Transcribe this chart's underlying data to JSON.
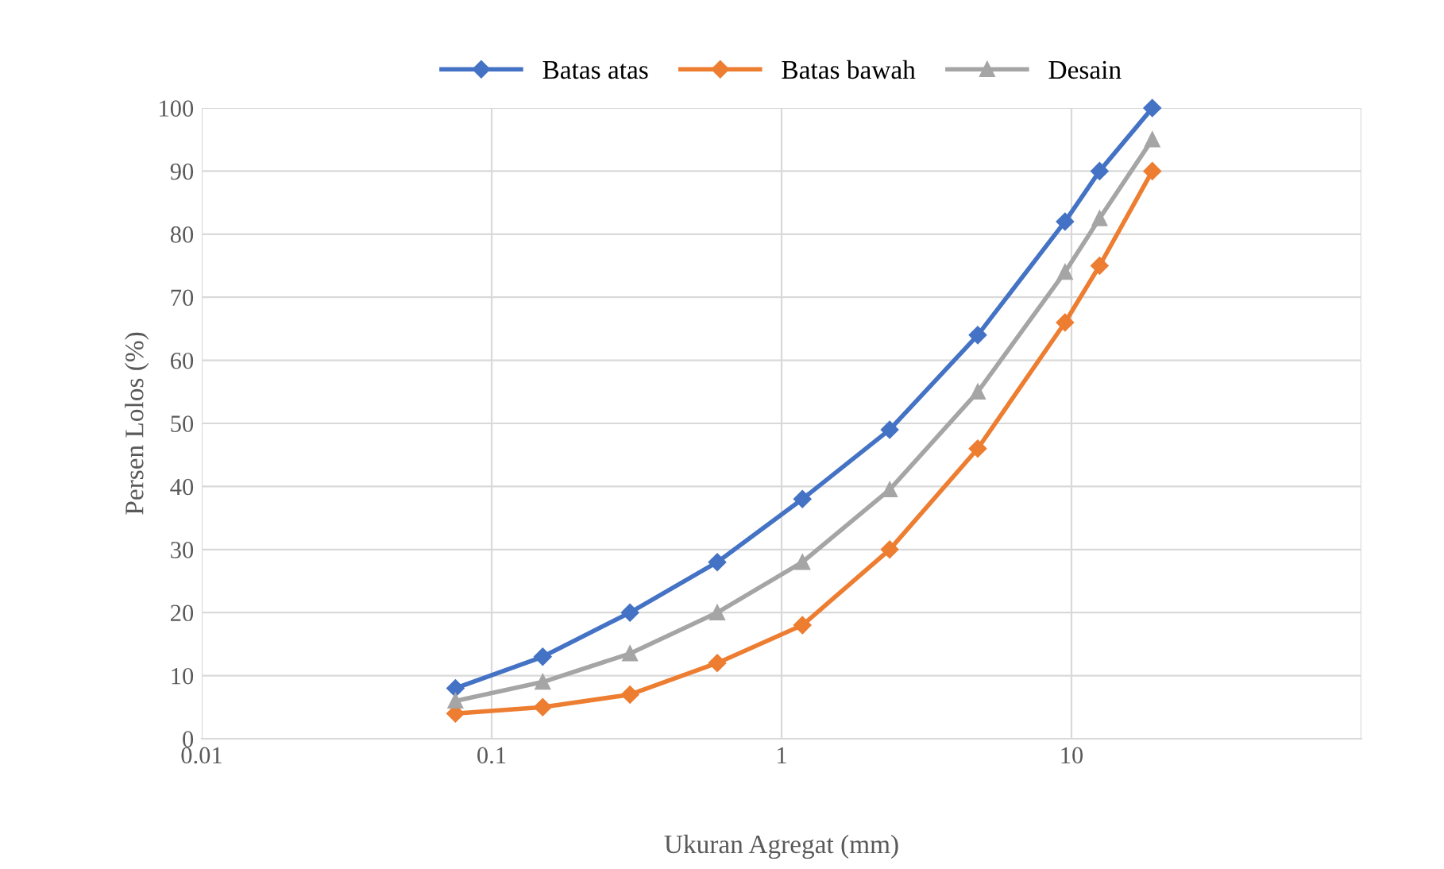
{
  "chart_data": {
    "type": "line",
    "xlabel": "Ukuran Agregat (mm)",
    "ylabel": "Persen Lolos (%)",
    "x": [
      0.075,
      0.15,
      0.3,
      0.6,
      1.18,
      2.36,
      4.75,
      9.5,
      12.5,
      19
    ],
    "series": [
      {
        "name": "Batas atas",
        "color": "#4472c4",
        "marker": "diamond",
        "values": [
          8,
          13,
          20,
          28,
          38,
          49,
          64,
          82,
          90,
          100
        ]
      },
      {
        "name": "Batas bawah",
        "color": "#ed7d31",
        "marker": "diamond",
        "values": [
          4,
          5,
          7,
          12,
          18,
          30,
          46,
          66,
          75,
          90
        ]
      },
      {
        "name": "Desain",
        "color": "#a5a5a5",
        "marker": "triangle",
        "values": [
          6,
          9,
          13.5,
          20,
          28,
          39.5,
          55,
          74,
          82.5,
          95
        ]
      }
    ],
    "log": "x",
    "xlim": [
      0.01,
      100
    ],
    "xticks": [
      0.01,
      0.1,
      1,
      10,
      {
        "value": 100,
        "label": null
      }
    ],
    "ylim": [
      0,
      100
    ],
    "yticks": [
      0,
      10,
      20,
      30,
      40,
      50,
      60,
      70,
      80,
      90,
      100
    ],
    "grid": true,
    "legend": "top",
    "line_style": "solid"
  }
}
